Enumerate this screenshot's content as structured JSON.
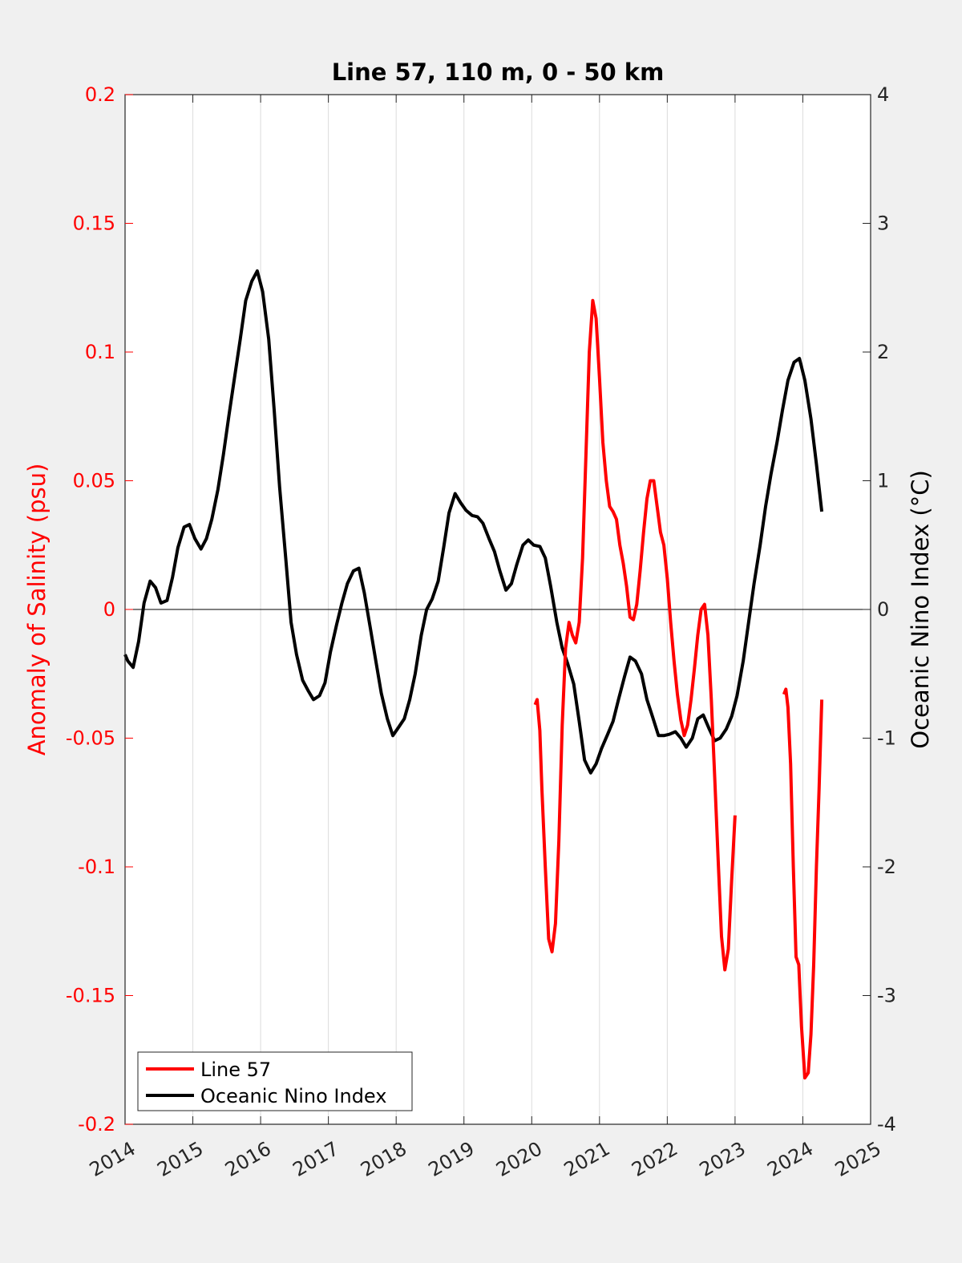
{
  "chart_data": {
    "type": "line",
    "title": "Line 57, 110 m, 0 - 50 km",
    "xlabel": "",
    "ylabel_left": "Anomaly of Salinity (psu)",
    "ylabel_right": "Oceanic Nino Index (°C)",
    "xlim": [
      2014,
      2025
    ],
    "ylim_left": [
      -0.2,
      0.2
    ],
    "ylim_right": [
      -4,
      4
    ],
    "x_ticks": [
      2014,
      2015,
      2016,
      2017,
      2018,
      2019,
      2020,
      2021,
      2022,
      2023,
      2024,
      2025
    ],
    "x_tick_labels": [
      "2014",
      "2015",
      "2016",
      "2017",
      "2018",
      "2019",
      "2020",
      "2021",
      "2022",
      "2023",
      "2024",
      "2025"
    ],
    "y_left_ticks": [
      0.2,
      0.15,
      0.1,
      0.05,
      0,
      -0.05,
      -0.1,
      -0.15,
      -0.2
    ],
    "y_left_tick_labels": [
      "0.2",
      "0.15",
      "0.1",
      "0.05",
      "0",
      "-0.05",
      "-0.1",
      "-0.15",
      "-0.2"
    ],
    "y_right_ticks": [
      4,
      3,
      2,
      1,
      0,
      -1,
      -2,
      -3,
      -4
    ],
    "y_right_tick_labels": [
      "4",
      "3",
      "2",
      "1",
      "0",
      "-1",
      "-2",
      "-3",
      "-4"
    ],
    "grid": "vertical",
    "zero_line": true,
    "legend_position": "bottom-left",
    "colors": {
      "line57": "#ff0000",
      "oni": "#000000",
      "left_axis": "#ff0000",
      "right_axis": "#000000"
    },
    "series": [
      {
        "name": "Line 57",
        "axis": "left",
        "segments": [
          [
            [
              2020.05,
              -0.037
            ],
            [
              2020.08,
              -0.035
            ],
            [
              2020.12,
              -0.047
            ],
            [
              2020.15,
              -0.07
            ],
            [
              2020.2,
              -0.1
            ],
            [
              2020.25,
              -0.128
            ],
            [
              2020.3,
              -0.133
            ],
            [
              2020.35,
              -0.122
            ],
            [
              2020.4,
              -0.09
            ],
            [
              2020.45,
              -0.045
            ],
            [
              2020.5,
              -0.015
            ],
            [
              2020.55,
              -0.005
            ],
            [
              2020.6,
              -0.01
            ],
            [
              2020.65,
              -0.013
            ],
            [
              2020.7,
              -0.005
            ],
            [
              2020.75,
              0.02
            ],
            [
              2020.8,
              0.06
            ],
            [
              2020.85,
              0.1
            ],
            [
              2020.9,
              0.12
            ],
            [
              2020.95,
              0.113
            ],
            [
              2021.0,
              0.09
            ],
            [
              2021.05,
              0.065
            ],
            [
              2021.1,
              0.05
            ],
            [
              2021.15,
              0.04
            ],
            [
              2021.2,
              0.038
            ],
            [
              2021.25,
              0.035
            ],
            [
              2021.3,
              0.025
            ],
            [
              2021.35,
              0.018
            ],
            [
              2021.4,
              0.009
            ],
            [
              2021.45,
              -0.003
            ],
            [
              2021.5,
              -0.004
            ],
            [
              2021.55,
              0.002
            ],
            [
              2021.6,
              0.015
            ],
            [
              2021.65,
              0.03
            ],
            [
              2021.7,
              0.043
            ],
            [
              2021.75,
              0.05
            ],
            [
              2021.8,
              0.05
            ],
            [
              2021.85,
              0.04
            ],
            [
              2021.9,
              0.03
            ],
            [
              2021.95,
              0.025
            ],
            [
              2022.0,
              0.012
            ],
            [
              2022.05,
              -0.005
            ],
            [
              2022.1,
              -0.02
            ],
            [
              2022.15,
              -0.033
            ],
            [
              2022.2,
              -0.043
            ],
            [
              2022.25,
              -0.049
            ],
            [
              2022.3,
              -0.045
            ],
            [
              2022.35,
              -0.035
            ],
            [
              2022.4,
              -0.023
            ],
            [
              2022.45,
              -0.01
            ],
            [
              2022.5,
              0.0
            ],
            [
              2022.55,
              0.002
            ],
            [
              2022.6,
              -0.01
            ],
            [
              2022.65,
              -0.035
            ],
            [
              2022.7,
              -0.065
            ],
            [
              2022.75,
              -0.097
            ],
            [
              2022.8,
              -0.127
            ],
            [
              2022.85,
              -0.14
            ],
            [
              2022.9,
              -0.132
            ],
            [
              2022.95,
              -0.105
            ],
            [
              2023.0,
              -0.08
            ]
          ],
          [
            [
              2023.72,
              -0.033
            ],
            [
              2023.75,
              -0.031
            ],
            [
              2023.78,
              -0.038
            ],
            [
              2023.82,
              -0.06
            ],
            [
              2023.86,
              -0.1
            ],
            [
              2023.9,
              -0.135
            ],
            [
              2023.94,
              -0.138
            ],
            [
              2023.98,
              -0.162
            ],
            [
              2024.03,
              -0.182
            ],
            [
              2024.08,
              -0.18
            ],
            [
              2024.12,
              -0.165
            ],
            [
              2024.16,
              -0.138
            ],
            [
              2024.2,
              -0.1
            ],
            [
              2024.24,
              -0.07
            ],
            [
              2024.28,
              -0.035
            ]
          ]
        ]
      },
      {
        "name": "Oceanic Nino Index",
        "axis": "right",
        "points": [
          [
            2014.0,
            -0.35
          ],
          [
            2014.04,
            -0.4
          ],
          [
            2014.12,
            -0.45
          ],
          [
            2014.2,
            -0.25
          ],
          [
            2014.28,
            0.05
          ],
          [
            2014.37,
            0.22
          ],
          [
            2014.45,
            0.17
          ],
          [
            2014.53,
            0.05
          ],
          [
            2014.62,
            0.07
          ],
          [
            2014.7,
            0.25
          ],
          [
            2014.78,
            0.48
          ],
          [
            2014.87,
            0.64
          ],
          [
            2014.95,
            0.66
          ],
          [
            2015.03,
            0.55
          ],
          [
            2015.12,
            0.47
          ],
          [
            2015.2,
            0.55
          ],
          [
            2015.28,
            0.7
          ],
          [
            2015.37,
            0.93
          ],
          [
            2015.45,
            1.2
          ],
          [
            2015.53,
            1.5
          ],
          [
            2015.62,
            1.82
          ],
          [
            2015.7,
            2.1
          ],
          [
            2015.78,
            2.4
          ],
          [
            2015.87,
            2.55
          ],
          [
            2015.95,
            2.63
          ],
          [
            2016.03,
            2.47
          ],
          [
            2016.12,
            2.1
          ],
          [
            2016.2,
            1.55
          ],
          [
            2016.28,
            0.95
          ],
          [
            2016.37,
            0.4
          ],
          [
            2016.45,
            -0.1
          ],
          [
            2016.53,
            -0.35
          ],
          [
            2016.62,
            -0.55
          ],
          [
            2016.7,
            -0.63
          ],
          [
            2016.78,
            -0.7
          ],
          [
            2016.87,
            -0.67
          ],
          [
            2016.95,
            -0.57
          ],
          [
            2017.03,
            -0.33
          ],
          [
            2017.12,
            -0.12
          ],
          [
            2017.2,
            0.05
          ],
          [
            2017.28,
            0.2
          ],
          [
            2017.37,
            0.3
          ],
          [
            2017.45,
            0.32
          ],
          [
            2017.53,
            0.13
          ],
          [
            2017.62,
            -0.15
          ],
          [
            2017.7,
            -0.4
          ],
          [
            2017.78,
            -0.65
          ],
          [
            2017.87,
            -0.85
          ],
          [
            2017.95,
            -0.98
          ],
          [
            2018.03,
            -0.92
          ],
          [
            2018.12,
            -0.85
          ],
          [
            2018.2,
            -0.7
          ],
          [
            2018.28,
            -0.5
          ],
          [
            2018.37,
            -0.2
          ],
          [
            2018.45,
            0.0
          ],
          [
            2018.53,
            0.08
          ],
          [
            2018.62,
            0.22
          ],
          [
            2018.7,
            0.48
          ],
          [
            2018.78,
            0.75
          ],
          [
            2018.87,
            0.9
          ],
          [
            2018.95,
            0.83
          ],
          [
            2019.03,
            0.77
          ],
          [
            2019.12,
            0.73
          ],
          [
            2019.2,
            0.72
          ],
          [
            2019.28,
            0.67
          ],
          [
            2019.37,
            0.55
          ],
          [
            2019.45,
            0.45
          ],
          [
            2019.53,
            0.3
          ],
          [
            2019.62,
            0.15
          ],
          [
            2019.7,
            0.2
          ],
          [
            2019.78,
            0.35
          ],
          [
            2019.87,
            0.5
          ],
          [
            2019.95,
            0.54
          ],
          [
            2020.03,
            0.5
          ],
          [
            2020.12,
            0.49
          ],
          [
            2020.2,
            0.4
          ],
          [
            2020.28,
            0.18
          ],
          [
            2020.37,
            -0.1
          ],
          [
            2020.45,
            -0.3
          ],
          [
            2020.53,
            -0.42
          ],
          [
            2020.62,
            -0.58
          ],
          [
            2020.7,
            -0.87
          ],
          [
            2020.78,
            -1.17
          ],
          [
            2020.87,
            -1.27
          ],
          [
            2020.95,
            -1.2
          ],
          [
            2021.03,
            -1.08
          ],
          [
            2021.12,
            -0.97
          ],
          [
            2021.2,
            -0.87
          ],
          [
            2021.28,
            -0.7
          ],
          [
            2021.37,
            -0.52
          ],
          [
            2021.45,
            -0.37
          ],
          [
            2021.53,
            -0.4
          ],
          [
            2021.62,
            -0.5
          ],
          [
            2021.7,
            -0.7
          ],
          [
            2021.78,
            -0.83
          ],
          [
            2021.87,
            -0.98
          ],
          [
            2021.95,
            -0.98
          ],
          [
            2022.03,
            -0.97
          ],
          [
            2022.12,
            -0.95
          ],
          [
            2022.2,
            -1.0
          ],
          [
            2022.28,
            -1.07
          ],
          [
            2022.37,
            -1.0
          ],
          [
            2022.45,
            -0.85
          ],
          [
            2022.53,
            -0.82
          ],
          [
            2022.62,
            -0.93
          ],
          [
            2022.7,
            -1.02
          ],
          [
            2022.78,
            -1.0
          ],
          [
            2022.87,
            -0.93
          ],
          [
            2022.95,
            -0.83
          ],
          [
            2023.03,
            -0.67
          ],
          [
            2023.12,
            -0.4
          ],
          [
            2023.2,
            -0.1
          ],
          [
            2023.28,
            0.2
          ],
          [
            2023.37,
            0.5
          ],
          [
            2023.45,
            0.8
          ],
          [
            2023.53,
            1.05
          ],
          [
            2023.62,
            1.3
          ],
          [
            2023.7,
            1.55
          ],
          [
            2023.78,
            1.78
          ],
          [
            2023.87,
            1.92
          ],
          [
            2023.95,
            1.95
          ],
          [
            2024.03,
            1.78
          ],
          [
            2024.12,
            1.48
          ],
          [
            2024.2,
            1.13
          ],
          [
            2024.28,
            0.76
          ]
        ]
      }
    ]
  }
}
